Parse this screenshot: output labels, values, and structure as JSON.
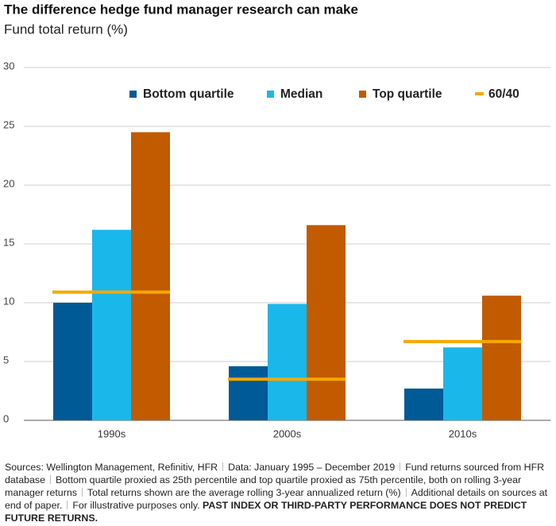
{
  "chart_data": {
    "type": "bar",
    "title": "The difference hedge fund manager research can make",
    "subtitle": "Fund total return (%)",
    "categories": [
      "1990s",
      "2000s",
      "2010s"
    ],
    "series": [
      {
        "name": "Bottom quartile",
        "color": "#005a96",
        "values": [
          10.0,
          4.6,
          2.7
        ]
      },
      {
        "name": "Median",
        "color": "#1ab7ea",
        "values": [
          16.2,
          9.9,
          6.2
        ]
      },
      {
        "name": "Top quartile",
        "color": "#c25a00",
        "values": [
          24.5,
          16.6,
          10.6
        ]
      },
      {
        "name": "60/40",
        "color": "#f5a800",
        "type": "line",
        "values": [
          10.9,
          3.5,
          6.7
        ]
      }
    ],
    "ylim": [
      0,
      30
    ],
    "yticks": [
      0,
      5,
      10,
      15,
      20,
      25,
      30
    ],
    "grid": true,
    "legend": "top"
  },
  "footnote": {
    "notes": [
      "Sources: Wellington Management, Refinitiv, HFR",
      "Data: January 1995 – December 2019",
      "Fund returns sourced from HFR database",
      "Bottom quartile proxied as 25th percentile and top quartile proxied as 75th percentile, both on rolling 3-year manager returns",
      "Total returns shown are the average rolling 3-year annualized return (%)",
      "Additional details on sources at end of paper.",
      "For illustrative purposes only."
    ],
    "disclaimer": "PAST INDEX OR THIRD-PARTY PERFORMANCE DOES NOT PREDICT FUTURE RETURNS."
  }
}
